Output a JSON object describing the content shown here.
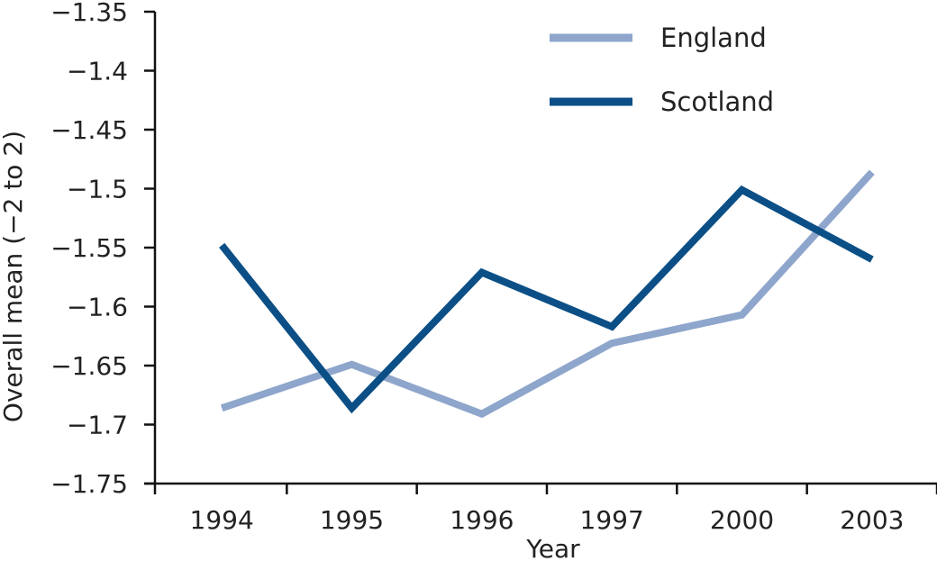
{
  "chart_data": {
    "type": "line",
    "title": "",
    "xlabel": "Year",
    "ylabel": "Overall mean (−2 to 2)",
    "categories": [
      "1994",
      "1995",
      "1996",
      "1997",
      "2000",
      "2003"
    ],
    "ylim": [
      -1.75,
      -1.35
    ],
    "y_ticks": [
      {
        "value": -1.35,
        "label": "−1.35"
      },
      {
        "value": -1.4,
        "label": "−1.4"
      },
      {
        "value": -1.45,
        "label": "−1.45"
      },
      {
        "value": -1.5,
        "label": "−1.5"
      },
      {
        "value": -1.55,
        "label": "−1.55"
      },
      {
        "value": -1.6,
        "label": "−1.6"
      },
      {
        "value": -1.65,
        "label": "−1.65"
      },
      {
        "value": -1.7,
        "label": "−1.7"
      },
      {
        "value": -1.75,
        "label": "−1.75"
      }
    ],
    "grid": false,
    "legend_position": "top-right",
    "series": [
      {
        "name": "England",
        "color": "#8ea6cc",
        "values": [
          -1.686,
          -1.649,
          -1.691,
          -1.631,
          -1.607,
          -1.486
        ]
      },
      {
        "name": "Scotland",
        "color": "#0b4f86",
        "values": [
          -1.548,
          -1.686,
          -1.571,
          -1.617,
          -1.501,
          -1.56
        ]
      }
    ]
  }
}
